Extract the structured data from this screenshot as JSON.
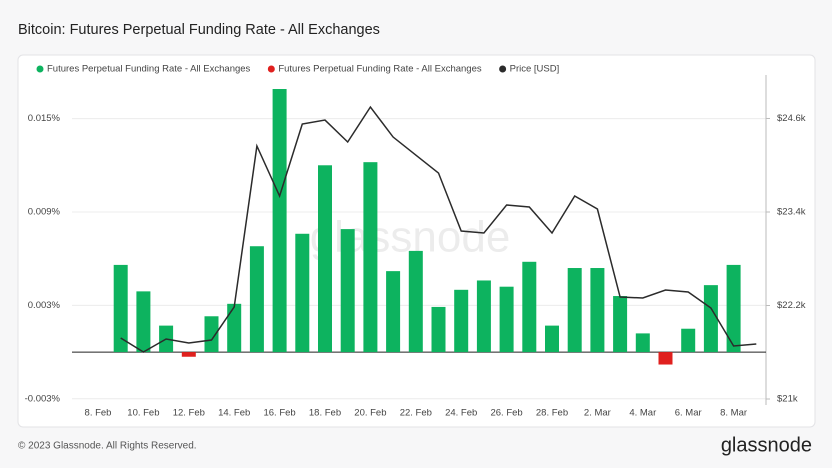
{
  "chart_data": {
    "type": "bar",
    "title": "Bitcoin: Futures Perpetual Funding Rate - All Exchanges",
    "categories": [
      "8. Feb",
      null,
      "10. Feb",
      null,
      "12. Feb",
      null,
      "14. Feb",
      null,
      "16. Feb",
      null,
      "18. Feb",
      null,
      "20. Feb",
      null,
      "22. Feb",
      null,
      "24. Feb",
      null,
      "26. Feb",
      null,
      "28. Feb",
      null,
      "2. Mar",
      null,
      "4. Mar",
      null,
      "6. Mar",
      null,
      "8. Mar",
      null
    ],
    "series": [
      {
        "name": "Futures Perpetual Funding Rate - All Exchanges",
        "type": "bar",
        "color": "#0db35f",
        "values": [
          null,
          0.0056,
          0.0039,
          0.0017,
          null,
          0.0023,
          0.0031,
          0.0068,
          0.0169,
          0.0076,
          0.012,
          0.0079,
          0.0122,
          0.0052,
          0.0065,
          0.0029,
          0.004,
          0.0046,
          0.0042,
          0.0058,
          0.0017,
          0.0054,
          0.0054,
          0.0036,
          0.0012,
          null,
          0.0015,
          0.0043,
          0.0056,
          null
        ]
      },
      {
        "name": "Futures Perpetual Funding Rate - All Exchanges",
        "type": "bar",
        "color": "#e0201e",
        "values": [
          null,
          null,
          null,
          null,
          -0.0003,
          null,
          null,
          null,
          null,
          null,
          null,
          null,
          null,
          null,
          null,
          null,
          null,
          null,
          null,
          null,
          null,
          null,
          null,
          null,
          null,
          -0.0008,
          null,
          null,
          null,
          null
        ]
      },
      {
        "name": "Price [USD]",
        "type": "line",
        "axis": "y2",
        "color": "#2b2b2b",
        "values": [
          null,
          21783,
          21603,
          21770,
          21719,
          21757,
          22181,
          24247,
          23605,
          24529,
          24580,
          24298,
          24747,
          24362,
          24131,
          23900,
          23156,
          23130,
          23490,
          23464,
          23130,
          23605,
          23438,
          22309,
          22296,
          22399,
          22373,
          22168,
          21680,
          21706
        ]
      }
    ],
    "ylim": [
      -0.0034,
      0.0178
    ],
    "yticks": [
      {
        "value": -0.003,
        "label": "-0.003%"
      },
      {
        "value": 0.003,
        "label": "0.003%"
      },
      {
        "value": 0.009,
        "label": "0.009%"
      },
      {
        "value": 0.015,
        "label": "0.015%"
      }
    ],
    "y2lim": [
      20923,
      25158
    ],
    "y2ticks": [
      {
        "value": 21000,
        "label": "$21k"
      },
      {
        "value": 22200,
        "label": "$22.2k"
      },
      {
        "value": 23400,
        "label": "$23.4k"
      },
      {
        "value": 24600,
        "label": "$24.6k"
      }
    ],
    "grid": true,
    "watermark": "glassnode",
    "footer": "© 2023 Glassnode. All Rights Reserved.",
    "logo": "glassnode"
  }
}
